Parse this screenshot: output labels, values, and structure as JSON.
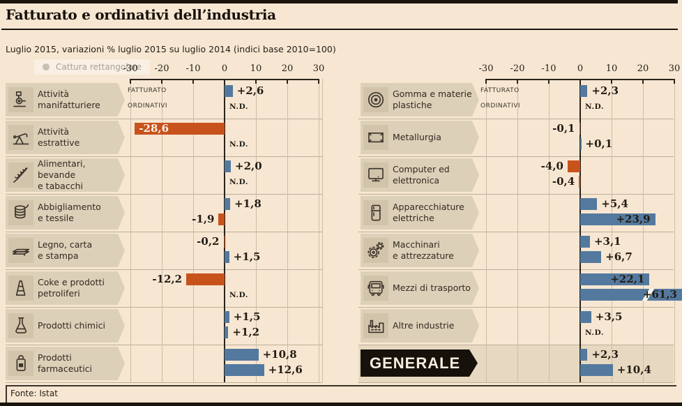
{
  "header": {
    "title": "Fatturato e ordinativi dell’industria",
    "subtitle": "Luglio 2015, variazioni % luglio 2015 su luglio 2014 (indici base 2010=100)"
  },
  "capture_tooltip": {
    "label": "Cattura rettangolare"
  },
  "footer": {
    "source": "Fonte: Istat"
  },
  "colors": {
    "bar_positive": "#54799e",
    "bar_negative": "#c8521c",
    "background": "#f7e7d2",
    "plate": "#ddd0b9",
    "icon_box": "#d2c4aa",
    "grid_light": "#cbbda6",
    "grid_horizontal": "#bcae98",
    "grid_dark": "#2a231b",
    "band": "#e7d9c1",
    "banner_bg": "#17110b",
    "banner_text": "#f5eee0",
    "text_dark": "#231c14",
    "label_on_negative": "#fbf3e6"
  },
  "chart_data": {
    "type": "bar",
    "orientation": "horizontal",
    "unit": "%",
    "axis_ticks": [
      -30,
      -20,
      -10,
      0,
      10,
      20,
      30
    ],
    "series_names": [
      "FATTURATO",
      "ORDINATIVI"
    ],
    "nd_text": "N.D.",
    "columns": [
      {
        "rows": [
          {
            "sector": "Attività manifatturiere",
            "label_lines": [
              "Attività",
              "manifatturiere"
            ],
            "icon": "machinery-robot-icon",
            "values": {
              "fatturato": 2.6,
              "ordinativi": null
            },
            "labels": {
              "fatturato": "+2,6",
              "ordinativi": "N.D."
            }
          },
          {
            "sector": "Attività estrattive",
            "label_lines": [
              "Attività",
              "estrattive"
            ],
            "icon": "oil-pump-icon",
            "values": {
              "fatturato": -28.6,
              "ordinativi": null
            },
            "labels": {
              "fatturato": "-28,6",
              "ordinativi": "N.D."
            }
          },
          {
            "sector": "Alimentari, bevande e tabacchi",
            "label_lines": [
              "Alimentari, bevande",
              "e tabacchi"
            ],
            "icon": "wheat-icon",
            "values": {
              "fatturato": 2.0,
              "ordinativi": null
            },
            "labels": {
              "fatturato": "+2,0",
              "ordinativi": "N.D."
            }
          },
          {
            "sector": "Abbigliamento e tessile",
            "label_lines": [
              "Abbigliamento",
              "e tessile"
            ],
            "icon": "textile-icon",
            "values": {
              "fatturato": 1.8,
              "ordinativi": -1.9
            },
            "labels": {
              "fatturato": "+1,8",
              "ordinativi": "-1,9"
            }
          },
          {
            "sector": "Legno, carta e stampa",
            "label_lines": [
              "Legno, carta",
              "e stampa"
            ],
            "icon": "paper-icon",
            "values": {
              "fatturato": -0.2,
              "ordinativi": 1.5
            },
            "labels": {
              "fatturato": "-0,2",
              "ordinativi": "+1,5"
            }
          },
          {
            "sector": "Coke e prodotti petroliferi",
            "label_lines": [
              "Coke e prodotti",
              "petroliferi"
            ],
            "icon": "oil-derrick-icon",
            "values": {
              "fatturato": -12.2,
              "ordinativi": null
            },
            "labels": {
              "fatturato": "-12,2",
              "ordinativi": "N.D."
            }
          },
          {
            "sector": "Prodotti chimici",
            "label_lines": [
              "Prodotti chimici"
            ],
            "icon": "flask-icon",
            "values": {
              "fatturato": 1.5,
              "ordinativi": 1.2
            },
            "labels": {
              "fatturato": "+1,5",
              "ordinativi": "+1,2"
            }
          },
          {
            "sector": "Prodotti farmaceutici",
            "label_lines": [
              "Prodotti",
              "farmaceutici"
            ],
            "icon": "pharma-bottle-icon",
            "values": {
              "fatturato": 10.8,
              "ordinativi": 12.6
            },
            "labels": {
              "fatturato": "+10,8",
              "ordinativi": "+12,6"
            }
          }
        ]
      },
      {
        "rows": [
          {
            "sector": "Gomma e materie plastiche",
            "label_lines": [
              "Gomma e materie",
              "plastiche"
            ],
            "icon": "tire-icon",
            "values": {
              "fatturato": 2.3,
              "ordinativi": null
            },
            "labels": {
              "fatturato": "+2,3",
              "ordinativi": "N.D."
            }
          },
          {
            "sector": "Metallurgia",
            "label_lines": [
              "Metallurgia"
            ],
            "icon": "metal-plate-icon",
            "values": {
              "fatturato": -0.1,
              "ordinativi": 0.1
            },
            "labels": {
              "fatturato": "-0,1",
              "ordinativi": "+0,1"
            }
          },
          {
            "sector": "Computer ed elettronica",
            "label_lines": [
              "Computer ed",
              "elettronica"
            ],
            "icon": "computer-monitor-icon",
            "values": {
              "fatturato": -4.0,
              "ordinativi": -0.4
            },
            "labels": {
              "fatturato": "-4,0",
              "ordinativi": "-0,4"
            }
          },
          {
            "sector": "Apparecchiature elettriche",
            "label_lines": [
              "Apparecchiature",
              "elettriche"
            ],
            "icon": "fridge-icon",
            "values": {
              "fatturato": 5.4,
              "ordinativi": 23.9
            },
            "labels": {
              "fatturato": "+5,4",
              "ordinativi": "+23,9"
            }
          },
          {
            "sector": "Macchinari e attrezzature",
            "label_lines": [
              "Macchinari",
              "e attrezzature"
            ],
            "icon": "gears-icon",
            "values": {
              "fatturato": 3.1,
              "ordinativi": 6.7
            },
            "labels": {
              "fatturato": "+3,1",
              "ordinativi": "+6,7"
            }
          },
          {
            "sector": "Mezzi di trasporto",
            "label_lines": [
              "Mezzi di trasporto"
            ],
            "icon": "bus-icon",
            "values": {
              "fatturato": 22.1,
              "ordinativi": 61.3
            },
            "labels": {
              "fatturato": "+22,1",
              "ordinativi": "+61,3"
            }
          },
          {
            "sector": "Altre industrie",
            "label_lines": [
              "Altre industrie"
            ],
            "icon": "factory-icon",
            "values": {
              "fatturato": 3.5,
              "ordinativi": null
            },
            "labels": {
              "fatturato": "+3,5",
              "ordinativi": "N.D."
            }
          },
          {
            "sector": "GENERALE",
            "label_lines": [
              "GENERALE"
            ],
            "icon": null,
            "banner": true,
            "values": {
              "fatturato": 2.3,
              "ordinativi": 10.4
            },
            "labels": {
              "fatturato": "+2,3",
              "ordinativi": "+10,4"
            }
          }
        ]
      }
    ]
  }
}
